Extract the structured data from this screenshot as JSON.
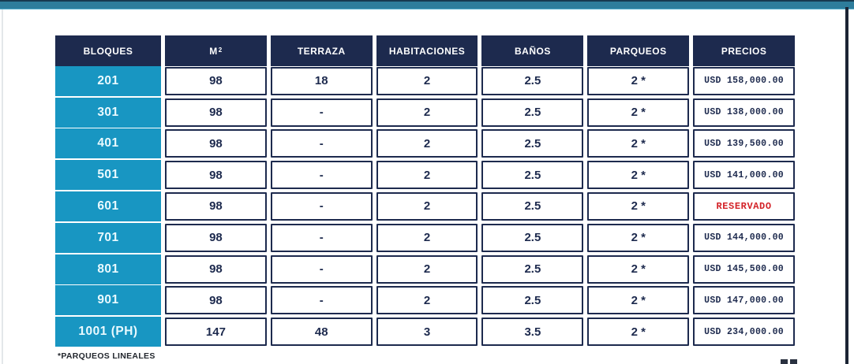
{
  "colors": {
    "navy": "#1d2a4e",
    "cyan": "#1896c2",
    "teal_bar": "#2e7d9c",
    "reserved_red": "#d32127"
  },
  "footnote": "*PARQUEOS LINEALES",
  "table": {
    "columns": [
      "BLOQUES",
      "M",
      "TERRAZA",
      "HABITACIONES",
      "BAÑOS",
      "PARQUEOS",
      "PRECIOS"
    ],
    "m2_superscript": "2",
    "rows": [
      {
        "bloque": "201",
        "m2": "98",
        "terraza": "18",
        "habitaciones": "2",
        "banos": "2.5",
        "parqueos": "2 *",
        "precio": "USD 158,000.00"
      },
      {
        "bloque": "301",
        "m2": "98",
        "terraza": "-",
        "habitaciones": "2",
        "banos": "2.5",
        "parqueos": "2 *",
        "precio": "USD 138,000.00"
      },
      {
        "bloque": "401",
        "m2": "98",
        "terraza": "-",
        "habitaciones": "2",
        "banos": "2.5",
        "parqueos": "2 *",
        "precio": "USD 139,500.00"
      },
      {
        "bloque": "501",
        "m2": "98",
        "terraza": "-",
        "habitaciones": "2",
        "banos": "2.5",
        "parqueos": "2 *",
        "precio": "USD 141,000.00"
      },
      {
        "bloque": "601",
        "m2": "98",
        "terraza": "-",
        "habitaciones": "2",
        "banos": "2.5",
        "parqueos": "2 *",
        "precio": "RESERVADO"
      },
      {
        "bloque": "701",
        "m2": "98",
        "terraza": "-",
        "habitaciones": "2",
        "banos": "2.5",
        "parqueos": "2 *",
        "precio": "USD 144,000.00"
      },
      {
        "bloque": "801",
        "m2": "98",
        "terraza": "-",
        "habitaciones": "2",
        "banos": "2.5",
        "parqueos": "2 *",
        "precio": "USD 145,500.00"
      },
      {
        "bloque": "901",
        "m2": "98",
        "terraza": "-",
        "habitaciones": "2",
        "banos": "2.5",
        "parqueos": "2 *",
        "precio": "USD 147,000.00"
      },
      {
        "bloque": "1001 (PH)",
        "m2": "147",
        "terraza": "48",
        "habitaciones": "3",
        "banos": "3.5",
        "parqueos": "2 *",
        "precio": "USD 234,000.00"
      }
    ]
  }
}
